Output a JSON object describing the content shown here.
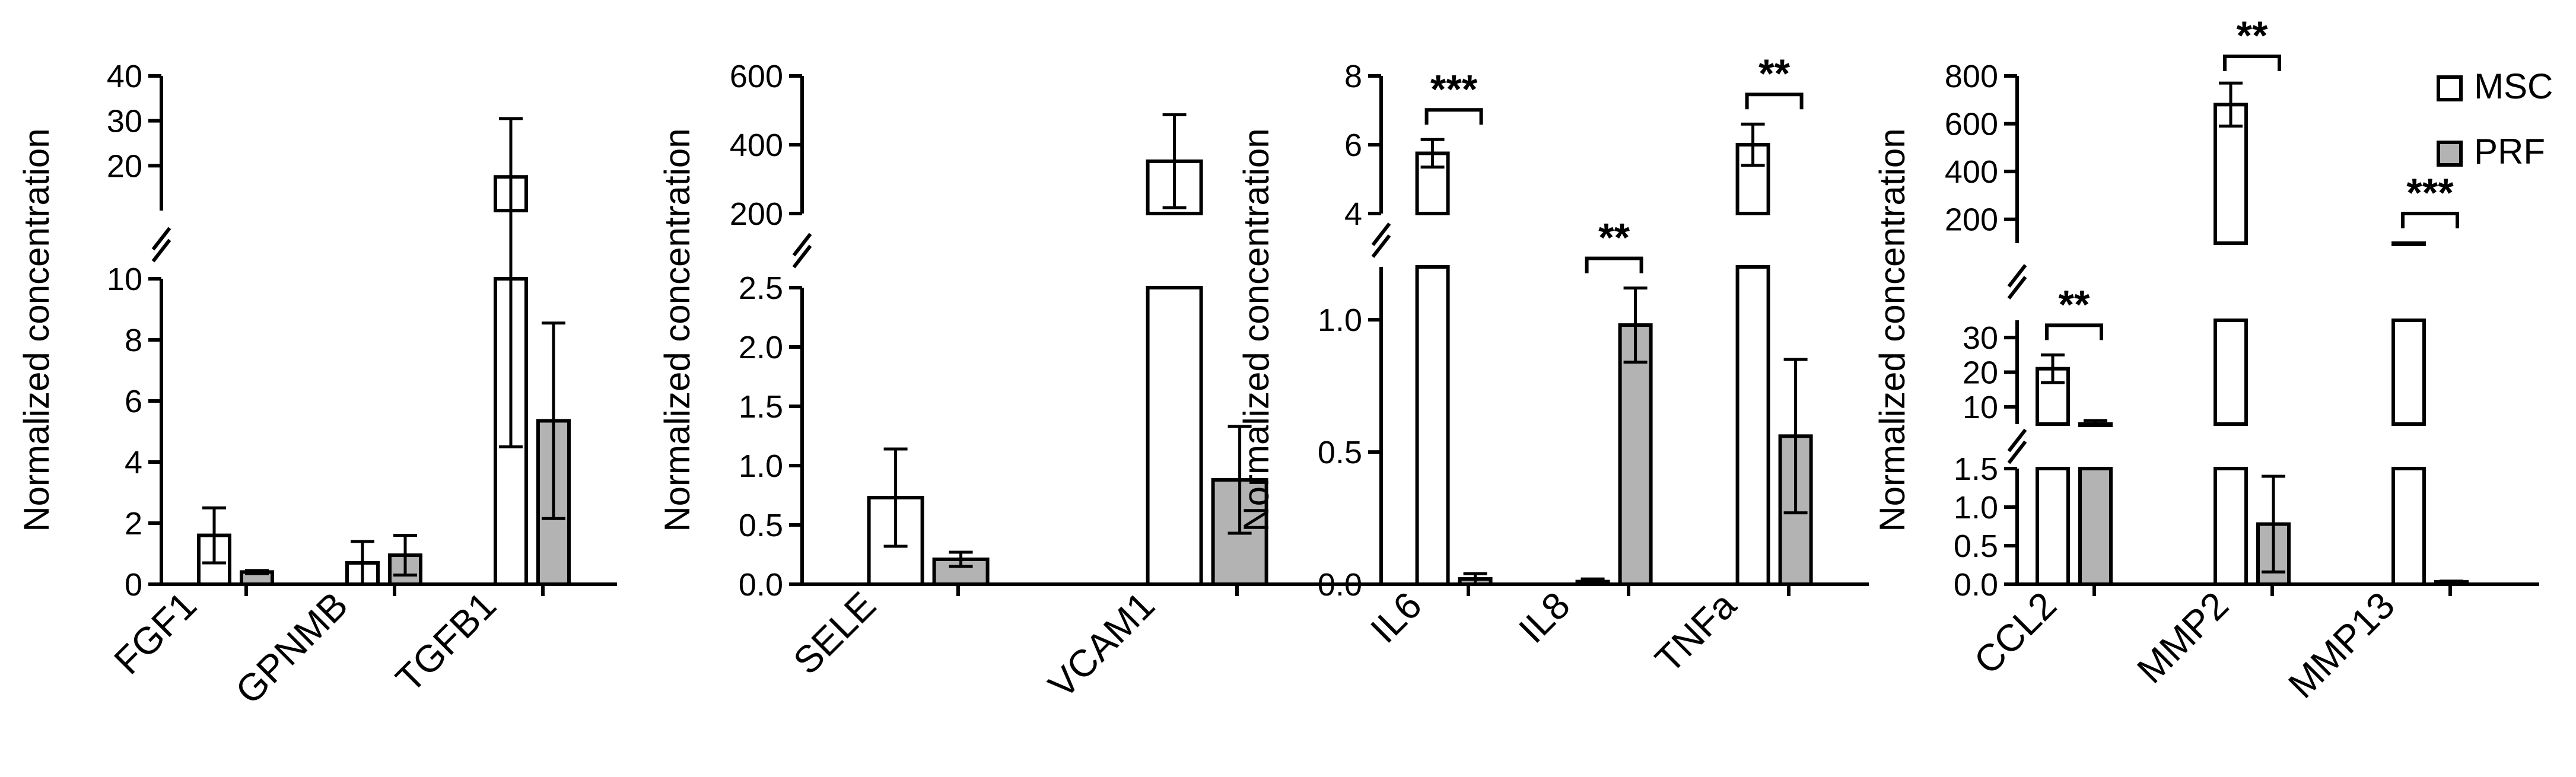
{
  "colors": {
    "msc_fill": "#ffffff",
    "prf_fill": "#b3b3b3",
    "stroke": "#000000"
  },
  "chart_data": [
    {
      "type": "bar",
      "ylabel": "Normalized concentration",
      "categories": [
        "FGF1",
        "GPNMB",
        "TGFB1"
      ],
      "series": [
        {
          "name": "MSC",
          "values": [
            1.6,
            0.7,
            17.5
          ],
          "errors": [
            0.9,
            0.7,
            13.0
          ]
        },
        {
          "name": "PRF",
          "values": [
            0.4,
            0.95,
            5.35
          ],
          "errors": [
            0.05,
            0.65,
            3.2
          ]
        }
      ],
      "y_segments": [
        {
          "range": [
            0,
            10
          ],
          "ticks": [
            "0",
            "2",
            "4",
            "6",
            "8",
            "10"
          ]
        },
        {
          "range": [
            10,
            40
          ],
          "ticks": [
            "20",
            "30",
            "40"
          ]
        }
      ],
      "annotations": []
    },
    {
      "type": "bar",
      "ylabel": "Normalized concentration",
      "categories": [
        "SELE",
        "VCAM1"
      ],
      "series": [
        {
          "name": "MSC",
          "values": [
            0.73,
            352
          ],
          "errors": [
            0.41,
            135
          ]
        },
        {
          "name": "PRF",
          "values": [
            0.21,
            0.88
          ],
          "errors": [
            0.06,
            0.45
          ]
        }
      ],
      "y_segments": [
        {
          "range": [
            0,
            2.5
          ],
          "ticks": [
            "0.0",
            "0.5",
            "1.0",
            "1.5",
            "2.0",
            "2.5"
          ]
        },
        {
          "range": [
            200,
            600
          ],
          "ticks": [
            "200",
            "400",
            "600"
          ]
        }
      ],
      "annotations": []
    },
    {
      "type": "bar",
      "ylabel": "Normalized concentration",
      "categories": [
        "IL6",
        "IL8",
        "TNFa"
      ],
      "series": [
        {
          "name": "MSC",
          "values": [
            5.75,
            0.01,
            6.0
          ],
          "errors": [
            0.4,
            0.01,
            0.6
          ]
        },
        {
          "name": "PRF",
          "values": [
            0.02,
            0.98,
            0.56
          ],
          "errors": [
            0.02,
            0.14,
            0.29
          ]
        }
      ],
      "y_segments": [
        {
          "range": [
            0,
            1.2
          ],
          "ticks": [
            "0.0",
            "0.5",
            "1.0"
          ]
        },
        {
          "range": [
            4,
            8
          ],
          "ticks": [
            "4",
            "6",
            "8"
          ]
        }
      ],
      "annotations": [
        {
          "category": "IL6",
          "text": "***"
        },
        {
          "category": "IL8",
          "text": "**"
        },
        {
          "category": "TNFa",
          "text": "**"
        }
      ]
    },
    {
      "type": "bar",
      "ylabel": "Normalized concentration",
      "categories": [
        "CCL2",
        "MMP2",
        "MMP13"
      ],
      "series": [
        {
          "name": "MSC",
          "values": [
            21,
            680,
            95
          ],
          "errors": [
            4,
            90,
            5
          ]
        },
        {
          "name": "PRF",
          "values": [
            5,
            0.78,
            0.03
          ],
          "errors": [
            1,
            0.62,
            0.01
          ]
        }
      ],
      "y_segments": [
        {
          "range": [
            0,
            1.5
          ],
          "ticks": [
            "0.0",
            "0.5",
            "1.0",
            "1.5"
          ]
        },
        {
          "range": [
            5,
            35
          ],
          "ticks": [
            "10",
            "20",
            "30"
          ]
        },
        {
          "range": [
            100,
            800
          ],
          "ticks": [
            "200",
            "400",
            "600",
            "800"
          ]
        }
      ],
      "annotations": [
        {
          "category": "CCL2",
          "text": "**"
        },
        {
          "category": "MMP2",
          "text": "**"
        },
        {
          "category": "MMP13",
          "text": "***"
        }
      ]
    }
  ],
  "legend": {
    "placement": "top-right",
    "items": [
      {
        "label": "MSC",
        "color": "#ffffff"
      },
      {
        "label": "PRF",
        "color": "#b3b3b3"
      }
    ]
  }
}
